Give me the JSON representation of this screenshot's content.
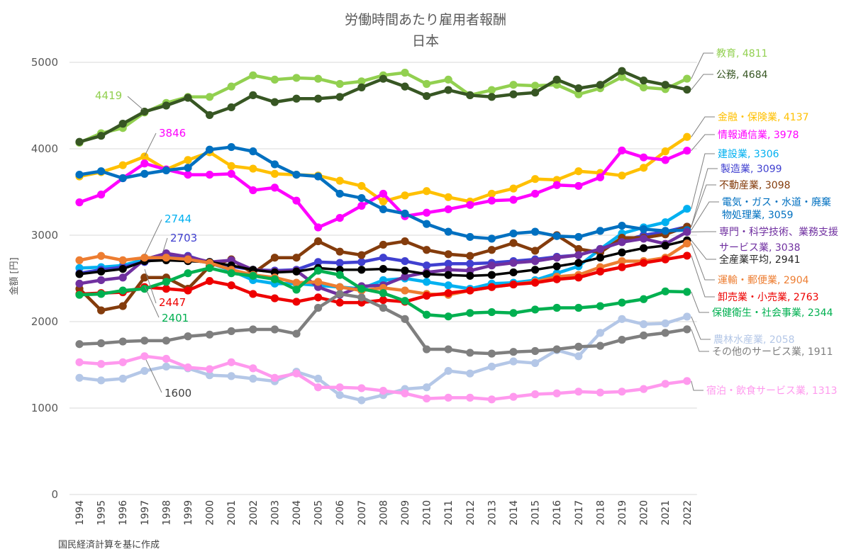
{
  "chart_data": {
    "type": "line",
    "title": "労働時間あたり雇用者報酬",
    "subtitle": "日本",
    "ylabel": "金額 [円]",
    "xlabel": "",
    "ylim": [
      0,
      5000
    ],
    "yticks": [
      "0",
      "1000",
      "2000",
      "3000",
      "4000",
      "5000"
    ],
    "grid": true,
    "source": "国民経済計算を基に作成",
    "categories": [
      "1994",
      "1995",
      "1996",
      "1997",
      "1998",
      "1999",
      "2000",
      "2001",
      "2002",
      "2003",
      "2004",
      "2005",
      "2006",
      "2007",
      "2008",
      "2009",
      "2010",
      "2011",
      "2012",
      "2013",
      "2014",
      "2015",
      "2016",
      "2017",
      "2018",
      "2019",
      "2020",
      "2021",
      "2022"
    ],
    "series": [
      {
        "name": "教育",
        "label": "教育, 4811",
        "color": "#92d050",
        "values": [
          4070,
          4180,
          4240,
          4420,
          4530,
          4600,
          4600,
          4720,
          4850,
          4800,
          4820,
          4810,
          4750,
          4780,
          4850,
          4880,
          4750,
          4800,
          4620,
          4680,
          4740,
          4730,
          4740,
          4630,
          4700,
          4830,
          4710,
          4690,
          4811
        ]
      },
      {
        "name": "公務",
        "label": "公務, 4684",
        "color": "#375623",
        "values": [
          4080,
          4150,
          4290,
          4430,
          4500,
          4590,
          4390,
          4480,
          4620,
          4540,
          4580,
          4580,
          4600,
          4710,
          4810,
          4720,
          4610,
          4680,
          4620,
          4600,
          4630,
          4650,
          4800,
          4700,
          4740,
          4900,
          4790,
          4740,
          4684
        ]
      },
      {
        "name": "金融・保険業",
        "label": "金融・保険業, 4137",
        "color": "#ffc000",
        "values": [
          3680,
          3730,
          3810,
          3910,
          3760,
          3870,
          3960,
          3800,
          3770,
          3710,
          3700,
          3690,
          3630,
          3570,
          3390,
          3460,
          3510,
          3440,
          3390,
          3480,
          3540,
          3650,
          3640,
          3740,
          3720,
          3690,
          3780,
          3970,
          4137
        ]
      },
      {
        "name": "情報通信業",
        "label": "情報通信業, 3978",
        "color": "#ff00ff",
        "values": [
          3380,
          3470,
          3660,
          3830,
          3760,
          3700,
          3700,
          3710,
          3520,
          3550,
          3400,
          3090,
          3200,
          3340,
          3480,
          3220,
          3260,
          3300,
          3350,
          3400,
          3410,
          3480,
          3580,
          3570,
          3670,
          3980,
          3900,
          3870,
          3978
        ]
      },
      {
        "name": "建設業",
        "label": "建設業, 3306",
        "color": "#00b0f0",
        "values": [
          2620,
          2630,
          2650,
          2720,
          2720,
          2720,
          2680,
          2590,
          2480,
          2440,
          2440,
          2420,
          2400,
          2380,
          2480,
          2500,
          2460,
          2420,
          2380,
          2440,
          2450,
          2480,
          2560,
          2640,
          2840,
          3020,
          3090,
          3150,
          3306
        ]
      },
      {
        "name": "製造業",
        "label": "製造業, 3099",
        "color": "#4040d0",
        "values": [
          2560,
          2600,
          2630,
          2690,
          2750,
          2760,
          2680,
          2640,
          2600,
          2590,
          2600,
          2690,
          2680,
          2690,
          2740,
          2700,
          2650,
          2670,
          2670,
          2680,
          2700,
          2720,
          2750,
          2770,
          2840,
          2930,
          3000,
          3040,
          3099
        ]
      },
      {
        "name": "不動産業",
        "label": "不動産業, 3098",
        "color": "#843c0c",
        "values": [
          2380,
          2130,
          2180,
          2510,
          2510,
          2380,
          2640,
          2720,
          2560,
          2740,
          2740,
          2930,
          2810,
          2770,
          2890,
          2930,
          2830,
          2780,
          2760,
          2830,
          2910,
          2820,
          3000,
          2840,
          2800,
          2970,
          2970,
          3010,
          3098
        ]
      },
      {
        "name": "電気・ガス・水道・廃棄物処理業",
        "label": "電気・ガス・水道・廃棄物処理業, 3059",
        "color": "#0070c0",
        "values": [
          3700,
          3740,
          3660,
          3710,
          3750,
          3780,
          3990,
          4020,
          3970,
          3820,
          3700,
          3680,
          3480,
          3430,
          3300,
          3250,
          3130,
          3040,
          2980,
          2960,
          3020,
          3040,
          2990,
          2980,
          3050,
          3110,
          3070,
          3050,
          3059
        ]
      },
      {
        "name": "専門・科学技術、業務支援サービス業",
        "label": "専門・科学技術、業務支援サービス業, 3038",
        "color": "#7030a0",
        "values": [
          2440,
          2480,
          2510,
          2720,
          2790,
          2750,
          2690,
          2710,
          2600,
          2580,
          2590,
          2400,
          2310,
          2410,
          2420,
          2520,
          2570,
          2600,
          2590,
          2650,
          2680,
          2700,
          2740,
          2770,
          2840,
          2920,
          2960,
          2900,
          3038
        ]
      },
      {
        "name": "全産業平均",
        "label": "全産業平均, 2941",
        "color": "#000000",
        "values": [
          2550,
          2580,
          2610,
          2700,
          2710,
          2700,
          2690,
          2650,
          2600,
          2570,
          2580,
          2620,
          2600,
          2600,
          2610,
          2590,
          2550,
          2540,
          2530,
          2540,
          2570,
          2600,
          2640,
          2680,
          2740,
          2800,
          2850,
          2880,
          2941
        ]
      },
      {
        "name": "運輸・郵便業",
        "label": "運輸・郵便業, 2904",
        "color": "#ed7d31",
        "values": [
          2710,
          2760,
          2710,
          2740,
          2740,
          2720,
          2680,
          2600,
          2540,
          2510,
          2450,
          2460,
          2400,
          2360,
          2390,
          2360,
          2320,
          2310,
          2360,
          2400,
          2430,
          2460,
          2520,
          2540,
          2630,
          2700,
          2700,
          2740,
          2904
        ]
      },
      {
        "name": "卸売業・小売業",
        "label": "卸売業・小売業, 2763",
        "color": "#ee0000",
        "values": [
          2320,
          2330,
          2340,
          2400,
          2380,
          2360,
          2470,
          2420,
          2320,
          2270,
          2230,
          2280,
          2220,
          2220,
          2250,
          2230,
          2300,
          2330,
          2360,
          2400,
          2430,
          2450,
          2490,
          2510,
          2580,
          2630,
          2680,
          2720,
          2763
        ]
      },
      {
        "name": "保健衛生・社会事業",
        "label": "保健衛生・社会事業, 2344",
        "color": "#00b050",
        "values": [
          2310,
          2320,
          2360,
          2380,
          2460,
          2560,
          2620,
          2560,
          2530,
          2490,
          2370,
          2590,
          2540,
          2380,
          2330,
          2240,
          2080,
          2060,
          2100,
          2110,
          2100,
          2140,
          2160,
          2160,
          2180,
          2220,
          2260,
          2350,
          2344
        ]
      },
      {
        "name": "農林水産業",
        "label": "農林水産業, 2058",
        "color": "#b4c7e7",
        "values": [
          1350,
          1320,
          1340,
          1430,
          1480,
          1460,
          1380,
          1370,
          1340,
          1310,
          1420,
          1340,
          1150,
          1090,
          1150,
          1220,
          1240,
          1430,
          1400,
          1480,
          1540,
          1520,
          1670,
          1600,
          1870,
          2030,
          1970,
          1980,
          2058
        ]
      },
      {
        "name": "その他のサービス業",
        "label": "その他のサービス業, 1911",
        "color": "#7f7f7f",
        "values": [
          1740,
          1750,
          1770,
          1780,
          1780,
          1830,
          1850,
          1890,
          1910,
          1910,
          1860,
          2160,
          2320,
          2280,
          2160,
          2030,
          1680,
          1680,
          1640,
          1630,
          1650,
          1660,
          1680,
          1710,
          1720,
          1790,
          1840,
          1870,
          1911
        ]
      },
      {
        "name": "宿泊・飲食サービス業",
        "label": "宿泊・飲食サービス業, 1313",
        "color": "#ff99ee",
        "values": [
          1530,
          1510,
          1530,
          1600,
          1570,
          1470,
          1450,
          1530,
          1460,
          1350,
          1400,
          1240,
          1240,
          1230,
          1200,
          1170,
          1110,
          1120,
          1120,
          1100,
          1130,
          1160,
          1170,
          1190,
          1180,
          1190,
          1220,
          1280,
          1313
        ]
      }
    ],
    "annotations": [
      {
        "text": "4419",
        "color": "#92d050"
      },
      {
        "text": "3846",
        "color": "#ff00ff"
      },
      {
        "text": "2744",
        "color": "#00b0f0"
      },
      {
        "text": "2703",
        "color": "#4040d0"
      },
      {
        "text": "2447",
        "color": "#ee0000"
      },
      {
        "text": "2401",
        "color": "#00b050"
      },
      {
        "text": "1600",
        "color": "#404040"
      }
    ]
  }
}
